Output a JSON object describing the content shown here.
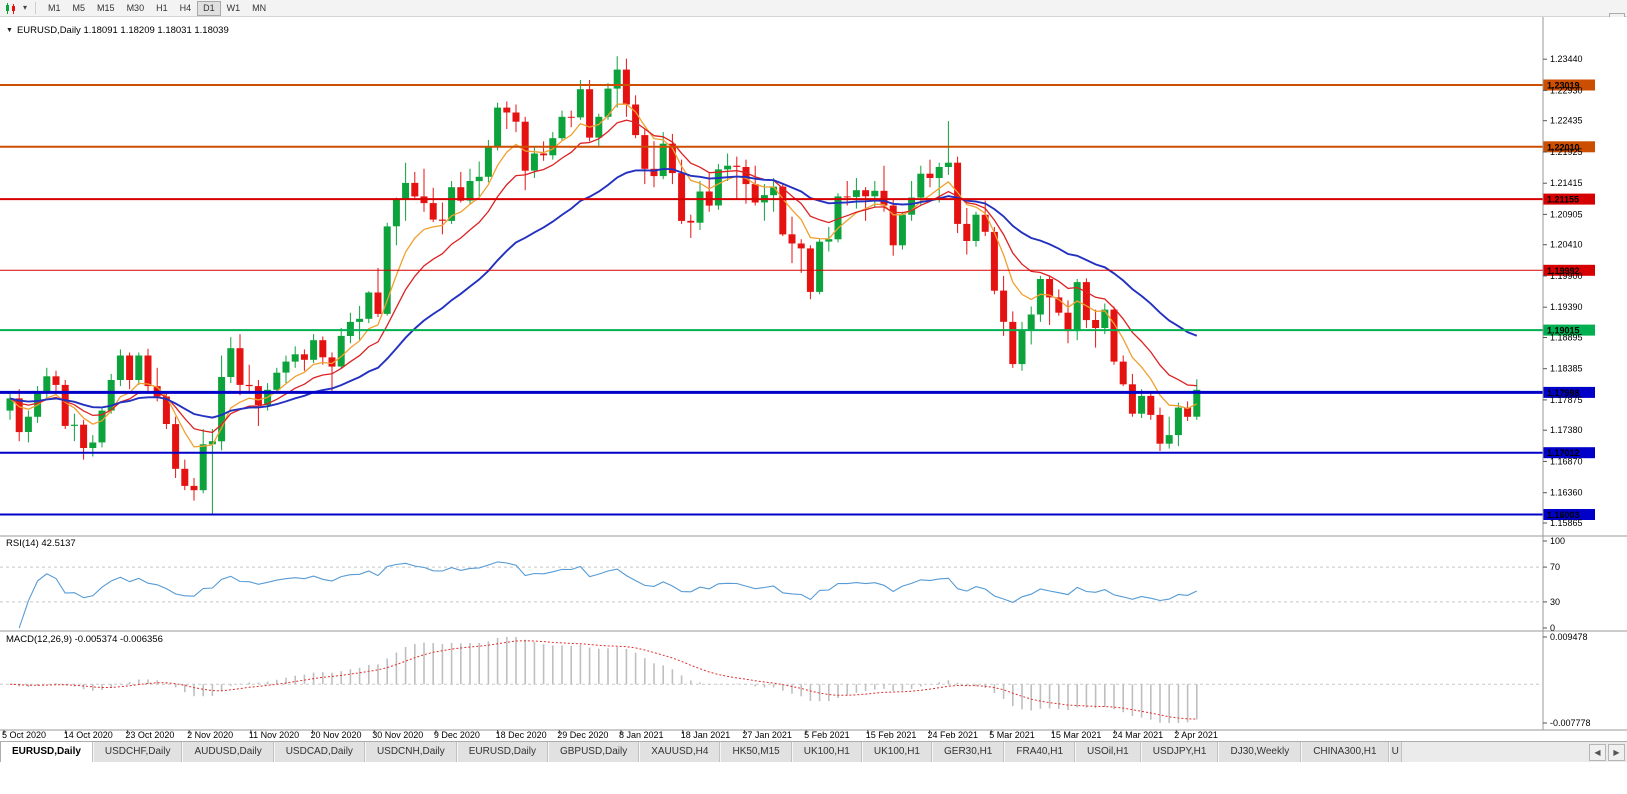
{
  "toolbar": {
    "timeframes": [
      "M1",
      "M5",
      "M15",
      "M30",
      "H1",
      "H4",
      "D1",
      "W1",
      "MN"
    ],
    "active_timeframe": "D1",
    "dropdown_caret": "▾",
    "scroll_up_glyph": "▲"
  },
  "chart": {
    "collapse_glyph": "▼",
    "title": "EURUSD,Daily 1.18091 1.18209 1.18031 1.18039"
  },
  "chart_data": {
    "type": "candlestick",
    "symbol": "EURUSD",
    "timeframe": "Daily",
    "ohlc_display": {
      "open": "1.18091",
      "high": "1.18209",
      "low": "1.18031",
      "close": "1.18039"
    },
    "colors": {
      "candle_up": "#0da33c",
      "candle_down": "#e51212",
      "ma_fast": "#f0a030",
      "ma_mid": "#dd2222",
      "ma_slow": "#2331c0",
      "rsi": "#569bd5",
      "macd_hist": "#bfbfbf",
      "macd_signal": "#e03030",
      "axis": "#9a9a9a"
    },
    "main_panel": {
      "ylim": [
        1.1575,
        1.2395
      ],
      "price_ticks": [
        "1.23440",
        "1.22930",
        "1.22435",
        "1.21925",
        "1.21415",
        "1.20905",
        "1.20410",
        "1.19900",
        "1.19390",
        "1.18895",
        "1.18385",
        "1.17875",
        "1.17380",
        "1.16870",
        "1.16360",
        "1.15865"
      ]
    },
    "horizontal_lines": [
      {
        "price": "1.23019",
        "color": "#cc4e00",
        "width": 2
      },
      {
        "price": "1.22010",
        "color": "#cc4e00",
        "width": 2
      },
      {
        "price": "1.21155",
        "color": "#d60000",
        "width": 2
      },
      {
        "price": "1.19992",
        "color": "#d60000",
        "width": 1
      },
      {
        "price": "1.19015",
        "color": "#00b050",
        "width": 2
      },
      {
        "price": "1.17998",
        "color": "#0000c8",
        "width": 3
      },
      {
        "price": "1.17012",
        "color": "#0000c8",
        "width": 2
      },
      {
        "price": "1.16003",
        "color": "#0000c8",
        "width": 2
      }
    ],
    "moving_averages": [
      {
        "name": "fast-ma",
        "period": 7,
        "color": "#f0a030",
        "width": 1.3
      },
      {
        "name": "mid-ma",
        "period": 13,
        "color": "#dd2222",
        "width": 1.3
      },
      {
        "name": "slow-ma",
        "period": 30,
        "color": "#2331c0",
        "width": 1.9
      }
    ],
    "candles": [
      [
        1.177,
        1.18,
        1.1755,
        1.179
      ],
      [
        1.179,
        1.1805,
        1.172,
        1.1735
      ],
      [
        1.1735,
        1.177,
        1.1718,
        1.176
      ],
      [
        1.176,
        1.181,
        1.175,
        1.18
      ],
      [
        1.18,
        1.184,
        1.179,
        1.1826
      ],
      [
        1.1826,
        1.1835,
        1.1795,
        1.1812
      ],
      [
        1.1812,
        1.182,
        1.174,
        1.1745
      ],
      [
        1.1745,
        1.1765,
        1.172,
        1.1747
      ],
      [
        1.1747,
        1.1755,
        1.169,
        1.1709
      ],
      [
        1.1709,
        1.173,
        1.1695,
        1.1718
      ],
      [
        1.1718,
        1.1775,
        1.171,
        1.177
      ],
      [
        1.177,
        1.183,
        1.1765,
        1.182
      ],
      [
        1.182,
        1.187,
        1.181,
        1.186
      ],
      [
        1.186,
        1.1865,
        1.1805,
        1.182
      ],
      [
        1.182,
        1.1865,
        1.1812,
        1.186
      ],
      [
        1.186,
        1.1871,
        1.18,
        1.181
      ],
      [
        1.181,
        1.184,
        1.1785,
        1.1793
      ],
      [
        1.1793,
        1.18,
        1.174,
        1.1748
      ],
      [
        1.1748,
        1.176,
        1.166,
        1.1675
      ],
      [
        1.1675,
        1.169,
        1.164,
        1.1647
      ],
      [
        1.1647,
        1.166,
        1.1623,
        1.164
      ],
      [
        1.164,
        1.174,
        1.1635,
        1.1715
      ],
      [
        1.1715,
        1.174,
        1.1602,
        1.172
      ],
      [
        1.172,
        1.186,
        1.1705,
        1.1825
      ],
      [
        1.1825,
        1.189,
        1.1815,
        1.1872
      ],
      [
        1.1872,
        1.1895,
        1.1795,
        1.1812
      ],
      [
        1.1812,
        1.1845,
        1.18,
        1.181
      ],
      [
        1.181,
        1.182,
        1.1745,
        1.1779
      ],
      [
        1.1779,
        1.1815,
        1.177,
        1.1804
      ],
      [
        1.1804,
        1.184,
        1.1798,
        1.1832
      ],
      [
        1.1832,
        1.186,
        1.1815,
        1.185
      ],
      [
        1.185,
        1.1875,
        1.184,
        1.1862
      ],
      [
        1.1862,
        1.187,
        1.1835,
        1.1853
      ],
      [
        1.1853,
        1.1895,
        1.1848,
        1.1885
      ],
      [
        1.1885,
        1.1891,
        1.1845,
        1.1857
      ],
      [
        1.1857,
        1.1865,
        1.18,
        1.1842
      ],
      [
        1.1842,
        1.1905,
        1.1838,
        1.1892
      ],
      [
        1.1892,
        1.193,
        1.188,
        1.1915
      ],
      [
        1.1915,
        1.1941,
        1.1885,
        1.192
      ],
      [
        1.192,
        1.1965,
        1.1913,
        1.1963
      ],
      [
        1.1963,
        1.2003,
        1.1923,
        1.1928
      ],
      [
        1.1928,
        1.2077,
        1.1925,
        1.2071
      ],
      [
        1.2071,
        1.2118,
        1.204,
        1.2115
      ],
      [
        1.2115,
        1.2175,
        1.208,
        1.2142
      ],
      [
        1.2142,
        1.216,
        1.2117,
        1.212
      ],
      [
        1.212,
        1.2165,
        1.2095,
        1.2109
      ],
      [
        1.2109,
        1.2134,
        1.2078,
        1.2082
      ],
      [
        1.2082,
        1.211,
        1.2058,
        1.208
      ],
      [
        1.208,
        1.2145,
        1.2075,
        1.2135
      ],
      [
        1.2135,
        1.216,
        1.211,
        1.2113
      ],
      [
        1.2113,
        1.2165,
        1.2108,
        1.2145
      ],
      [
        1.2145,
        1.2177,
        1.212,
        1.2152
      ],
      [
        1.2152,
        1.2212,
        1.2143,
        1.2202
      ],
      [
        1.2202,
        1.2273,
        1.2195,
        1.2265
      ],
      [
        1.2265,
        1.2275,
        1.223,
        1.2257
      ],
      [
        1.2257,
        1.227,
        1.2225,
        1.2242
      ],
      [
        1.2242,
        1.225,
        1.213,
        1.2162
      ],
      [
        1.2162,
        1.22,
        1.215,
        1.219
      ],
      [
        1.219,
        1.221,
        1.2178,
        1.2187
      ],
      [
        1.2187,
        1.2225,
        1.218,
        1.2215
      ],
      [
        1.2215,
        1.226,
        1.221,
        1.225
      ],
      [
        1.225,
        1.226,
        1.2233,
        1.2249
      ],
      [
        1.2249,
        1.231,
        1.2245,
        1.2295
      ],
      [
        1.2295,
        1.231,
        1.221,
        1.2216
      ],
      [
        1.2216,
        1.2255,
        1.22,
        1.225
      ],
      [
        1.225,
        1.2305,
        1.2245,
        1.2296
      ],
      [
        1.2296,
        1.2349,
        1.2265,
        1.2327
      ],
      [
        1.2327,
        1.2345,
        1.225,
        1.227
      ],
      [
        1.227,
        1.2285,
        1.2215,
        1.222
      ],
      [
        1.222,
        1.223,
        1.214,
        1.2165
      ],
      [
        1.2165,
        1.221,
        1.2135,
        1.2153
      ],
      [
        1.2153,
        1.2225,
        1.2148,
        1.2206
      ],
      [
        1.2206,
        1.2222,
        1.214,
        1.2158
      ],
      [
        1.2158,
        1.218,
        1.2075,
        1.208
      ],
      [
        1.208,
        1.209,
        1.2052,
        1.2077
      ],
      [
        1.2077,
        1.2145,
        1.2065,
        1.2128
      ],
      [
        1.2128,
        1.2158,
        1.2095,
        1.2105
      ],
      [
        1.2105,
        1.2173,
        1.2098,
        1.2164
      ],
      [
        1.2164,
        1.219,
        1.2145,
        1.217
      ],
      [
        1.217,
        1.2185,
        1.2115,
        1.2168
      ],
      [
        1.2168,
        1.218,
        1.2108,
        1.214
      ],
      [
        1.214,
        1.217,
        1.2105,
        1.211
      ],
      [
        1.211,
        1.214,
        1.208,
        1.2122
      ],
      [
        1.2122,
        1.215,
        1.2095,
        1.2136
      ],
      [
        1.2136,
        1.214,
        1.2055,
        1.2058
      ],
      [
        1.2058,
        1.2087,
        1.2011,
        1.2043
      ],
      [
        1.2043,
        1.205,
        1.1995,
        1.2035
      ],
      [
        1.2035,
        1.204,
        1.1952,
        1.1964
      ],
      [
        1.1964,
        1.205,
        1.196,
        1.2046
      ],
      [
        1.2046,
        1.207,
        1.203,
        1.205
      ],
      [
        1.205,
        1.2125,
        1.2045,
        1.212
      ],
      [
        1.212,
        1.2145,
        1.2105,
        1.2119
      ],
      [
        1.2119,
        1.215,
        1.21,
        1.213
      ],
      [
        1.213,
        1.2135,
        1.208,
        1.212
      ],
      [
        1.212,
        1.2145,
        1.2103,
        1.2129
      ],
      [
        1.2129,
        1.217,
        1.2095,
        1.2105
      ],
      [
        1.2105,
        1.2115,
        1.2023,
        1.204
      ],
      [
        1.204,
        1.2095,
        1.2033,
        1.209
      ],
      [
        1.209,
        1.2145,
        1.208,
        1.2118
      ],
      [
        1.2118,
        1.217,
        1.2105,
        1.2157
      ],
      [
        1.2157,
        1.218,
        1.2135,
        1.215
      ],
      [
        1.215,
        1.2175,
        1.211,
        1.2168
      ],
      [
        1.2168,
        1.2243,
        1.2155,
        1.2175
      ],
      [
        1.2175,
        1.2185,
        1.206,
        1.2075
      ],
      [
        1.2075,
        1.2101,
        1.2025,
        1.2047
      ],
      [
        1.2047,
        1.2095,
        1.2038,
        1.209
      ],
      [
        1.209,
        1.2113,
        1.2055,
        1.2062
      ],
      [
        1.2062,
        1.207,
        1.196,
        1.1966
      ],
      [
        1.1966,
        1.199,
        1.1892,
        1.1915
      ],
      [
        1.1915,
        1.1932,
        1.184,
        1.1846
      ],
      [
        1.1846,
        1.1915,
        1.1835,
        1.19
      ],
      [
        1.19,
        1.194,
        1.1878,
        1.1927
      ],
      [
        1.1927,
        1.199,
        1.1915,
        1.1985
      ],
      [
        1.1985,
        1.1991,
        1.191,
        1.1955
      ],
      [
        1.1955,
        1.1968,
        1.1925,
        1.193
      ],
      [
        1.193,
        1.195,
        1.188,
        1.19
      ],
      [
        1.19,
        1.1985,
        1.1885,
        1.198
      ],
      [
        1.198,
        1.1986,
        1.1905,
        1.1918
      ],
      [
        1.1918,
        1.1935,
        1.1873,
        1.1905
      ],
      [
        1.1905,
        1.1945,
        1.1895,
        1.1935
      ],
      [
        1.1935,
        1.194,
        1.1845,
        1.185
      ],
      [
        1.185,
        1.186,
        1.181,
        1.1813
      ],
      [
        1.1813,
        1.183,
        1.176,
        1.1765
      ],
      [
        1.1765,
        1.1805,
        1.1758,
        1.1794
      ],
      [
        1.1794,
        1.18,
        1.1755,
        1.1763
      ],
      [
        1.1763,
        1.1775,
        1.1704,
        1.1716
      ],
      [
        1.1716,
        1.176,
        1.1708,
        1.173
      ],
      [
        1.173,
        1.1783,
        1.1712,
        1.1775
      ],
      [
        1.1775,
        1.1785,
        1.1753,
        1.176
      ],
      [
        1.176,
        1.1821,
        1.1755,
        1.1804
      ]
    ],
    "date_ticks": [
      "5 Oct 2020",
      "14 Oct 2020",
      "23 Oct 2020",
      "2 Nov 2020",
      "11 Nov 2020",
      "20 Nov 2020",
      "30 Nov 2020",
      "9 Dec 2020",
      "18 Dec 2020",
      "29 Dec 2020",
      "8 Jan 2021",
      "18 Jan 2021",
      "27 Jan 2021",
      "5 Feb 2021",
      "15 Feb 2021",
      "24 Feb 2021",
      "5 Mar 2021",
      "15 Mar 2021",
      "24 Mar 2021",
      "2 Apr 2021"
    ],
    "rsi_panel": {
      "label": "RSI(14) 42.5137",
      "period": 14,
      "current_value": "42.5137",
      "axis_ticks": [
        "100",
        "70",
        "30",
        "0"
      ],
      "guide_levels": [
        70,
        30
      ],
      "range": [
        0,
        100
      ]
    },
    "macd_panel": {
      "label": "MACD(12,26,9) -0.005374 -0.006356",
      "fast": 12,
      "slow": 26,
      "signal": 9,
      "macd_value": "-0.005374",
      "signal_value": "-0.006356",
      "axis_ticks": [
        "0.009478",
        "-0.007778"
      ],
      "range": [
        -0.007778,
        0.009478
      ]
    }
  },
  "tabs": [
    {
      "label": "EURUSD,Daily",
      "active": true
    },
    {
      "label": "USDCHF,Daily"
    },
    {
      "label": "AUDUSD,Daily"
    },
    {
      "label": "USDCAD,Daily"
    },
    {
      "label": "USDCNH,Daily"
    },
    {
      "label": "EURUSD,Daily"
    },
    {
      "label": "GBPUSD,Daily"
    },
    {
      "label": "XAUUSD,H4"
    },
    {
      "label": "HK50,M15"
    },
    {
      "label": "UK100,H1"
    },
    {
      "label": "UK100,H1"
    },
    {
      "label": "GER30,H1"
    },
    {
      "label": "FRA40,H1"
    },
    {
      "label": "USOil,H1"
    },
    {
      "label": "USDJPY,H1"
    },
    {
      "label": "DJ30,Weekly"
    },
    {
      "label": "CHINA300,H1"
    },
    {
      "label": "U",
      "truncated": true
    }
  ],
  "tab_scroll": {
    "left": "◀",
    "right": "▶"
  }
}
